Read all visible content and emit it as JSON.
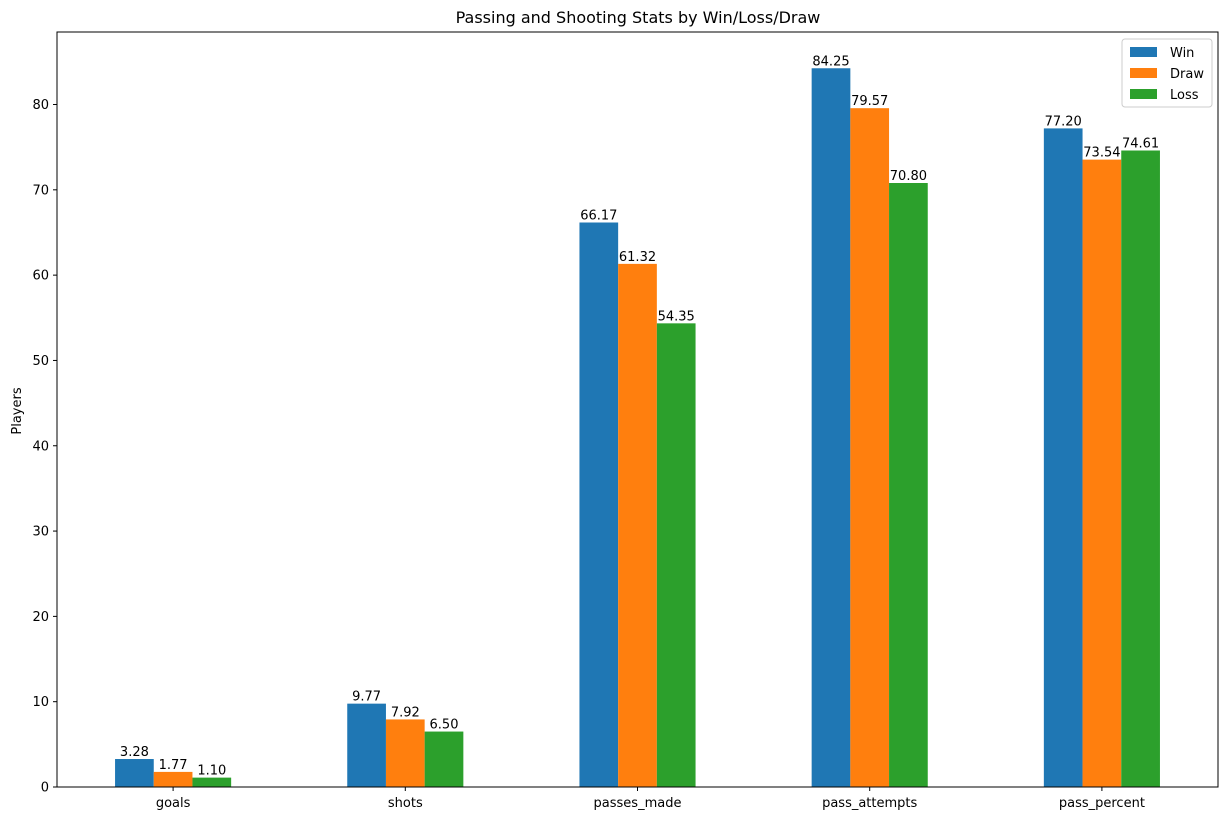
{
  "chart_data": {
    "type": "bar",
    "title": "Passing and Shooting Stats by Win/Loss/Draw",
    "xlabel": "",
    "ylabel": "Players",
    "categories": [
      "goals",
      "shots",
      "passes_made",
      "pass_attempts",
      "pass_percent"
    ],
    "series": [
      {
        "name": "Win",
        "color": "#1f77b4",
        "values": [
          3.28,
          9.77,
          66.17,
          84.25,
          77.2
        ],
        "labels": [
          "3.28",
          "9.77",
          "66.17",
          "84.25",
          "77.20"
        ]
      },
      {
        "name": "Draw",
        "color": "#ff7f0e",
        "values": [
          1.77,
          7.92,
          61.32,
          79.57,
          73.54
        ],
        "labels": [
          "1.77",
          "7.92",
          "61.32",
          "79.57",
          "73.54"
        ]
      },
      {
        "name": "Loss",
        "color": "#2ca02c",
        "values": [
          1.1,
          6.5,
          54.35,
          70.8,
          74.61
        ],
        "labels": [
          "1.10",
          "6.50",
          "54.35",
          "70.80",
          "74.61"
        ]
      }
    ],
    "ylim": [
      0,
      88.5
    ],
    "yticks": [
      0,
      10,
      20,
      30,
      40,
      50,
      60,
      70,
      80
    ],
    "grid": false,
    "legend_position": "top-right"
  }
}
